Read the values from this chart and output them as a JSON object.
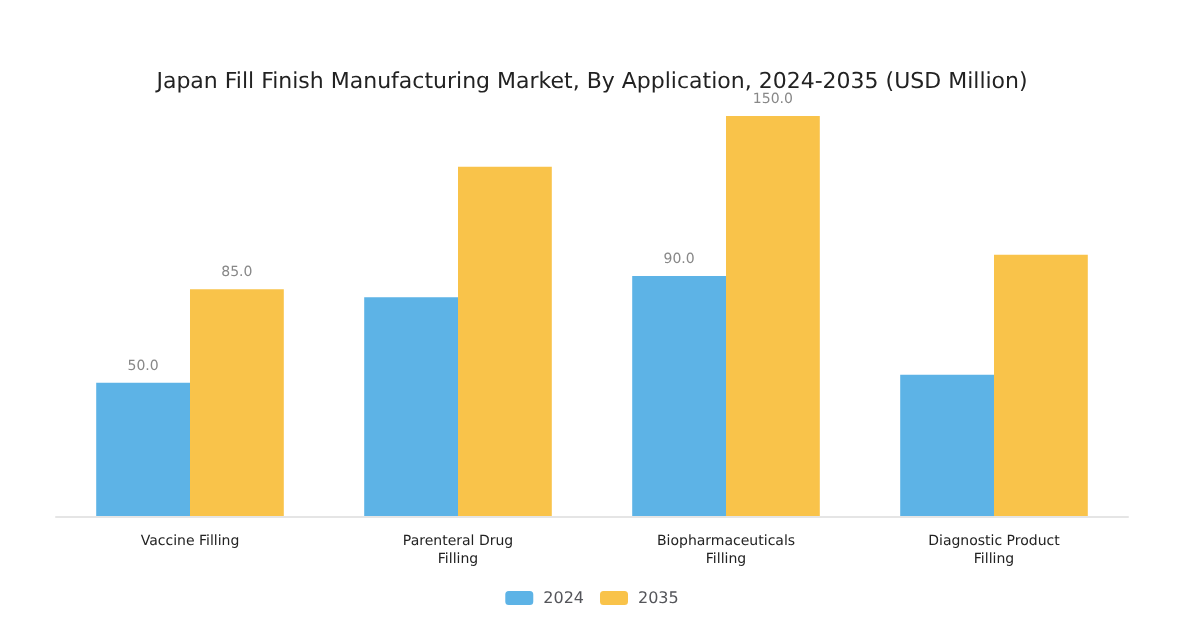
{
  "chart_data": {
    "type": "bar",
    "title": "Japan Fill Finish Manufacturing Market, By Application, 2024-2035 (USD Million)",
    "categories": [
      "Vaccine Filling",
      "Parenteral Drug\nFilling",
      "Biopharmaceuticals\nFilling",
      "Diagnostic Product\nFilling"
    ],
    "series": [
      {
        "name": "2024",
        "color": "#5db3e6",
        "values": [
          50,
          82,
          90,
          53
        ],
        "value_labels": [
          "50.0",
          null,
          "90.0",
          null
        ]
      },
      {
        "name": "2035",
        "color": "#f9c34a",
        "values": [
          85,
          131,
          150,
          98
        ],
        "value_labels": [
          "85.0",
          null,
          "150.0",
          null
        ]
      }
    ],
    "legend": "bottom",
    "grid": false
  }
}
